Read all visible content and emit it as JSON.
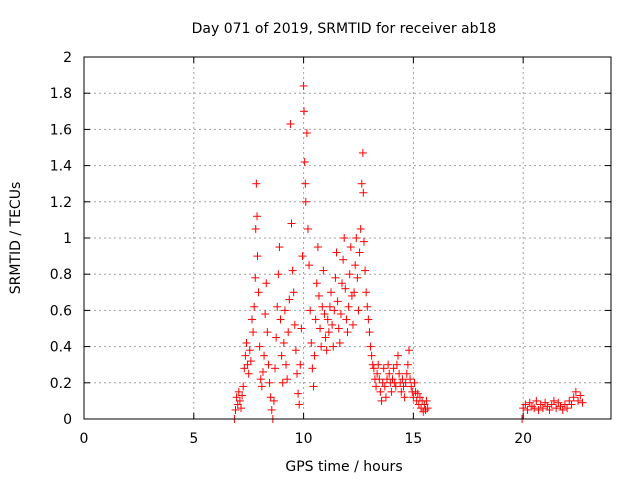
{
  "chart_data": {
    "type": "scatter",
    "title": "Day 071 of 2019, SRMTID for receiver ab18",
    "xlabel": "GPS time / hours",
    "ylabel": "SRMTID / TECUs",
    "xlim": [
      0,
      24
    ],
    "ylim": [
      0,
      2
    ],
    "xticks": [
      0,
      5,
      10,
      15,
      20
    ],
    "xtick_labels": [
      "0",
      "5",
      "10",
      "15",
      "20"
    ],
    "yticks": [
      0,
      0.2,
      0.4,
      0.6,
      0.8,
      1.0,
      1.2,
      1.4,
      1.6,
      1.8,
      2.0
    ],
    "ytick_labels": [
      "0",
      "0.2",
      "0.4",
      "0.6",
      "0.8",
      "1",
      "1.2",
      "1.4",
      "1.6",
      "1.8",
      "2"
    ],
    "grid": true,
    "marker": "+",
    "marker_color": "#ff0000",
    "series": [
      {
        "name": "SRMTID",
        "points": [
          [
            6.85,
            0.0
          ],
          [
            6.9,
            0.05
          ],
          [
            6.95,
            0.12
          ],
          [
            7.0,
            0.08
          ],
          [
            7.05,
            0.15
          ],
          [
            7.1,
            0.1
          ],
          [
            7.15,
            0.06
          ],
          [
            7.2,
            0.13
          ],
          [
            7.25,
            0.18
          ],
          [
            7.3,
            0.28
          ],
          [
            7.35,
            0.35
          ],
          [
            7.4,
            0.42
          ],
          [
            7.45,
            0.3
          ],
          [
            7.5,
            0.25
          ],
          [
            7.55,
            0.38
          ],
          [
            7.6,
            0.32
          ],
          [
            7.65,
            0.55
          ],
          [
            7.7,
            0.48
          ],
          [
            7.75,
            0.62
          ],
          [
            7.8,
            0.78
          ],
          [
            7.82,
            1.05
          ],
          [
            7.85,
            1.3
          ],
          [
            7.88,
            1.12
          ],
          [
            7.9,
            0.9
          ],
          [
            7.95,
            0.7
          ],
          [
            8.0,
            0.4
          ],
          [
            8.05,
            0.22
          ],
          [
            8.1,
            0.18
          ],
          [
            8.15,
            0.26
          ],
          [
            8.2,
            0.35
          ],
          [
            8.25,
            0.58
          ],
          [
            8.3,
            0.75
          ],
          [
            8.35,
            0.48
          ],
          [
            8.4,
            0.3
          ],
          [
            8.45,
            0.2
          ],
          [
            8.5,
            0.12
          ],
          [
            8.55,
            0.05
          ],
          [
            8.6,
            0.0
          ],
          [
            8.65,
            0.1
          ],
          [
            8.7,
            0.28
          ],
          [
            8.75,
            0.45
          ],
          [
            8.8,
            0.62
          ],
          [
            8.85,
            0.8
          ],
          [
            8.9,
            0.95
          ],
          [
            8.95,
            0.55
          ],
          [
            9.0,
            0.35
          ],
          [
            9.05,
            0.2
          ],
          [
            9.1,
            0.42
          ],
          [
            9.15,
            0.6
          ],
          [
            9.2,
            0.3
          ],
          [
            9.25,
            0.22
          ],
          [
            9.3,
            0.48
          ],
          [
            9.35,
            0.66
          ],
          [
            9.4,
            1.63
          ],
          [
            9.45,
            1.08
          ],
          [
            9.5,
            0.82
          ],
          [
            9.55,
            0.7
          ],
          [
            9.6,
            0.52
          ],
          [
            9.65,
            0.38
          ],
          [
            9.7,
            0.25
          ],
          [
            9.75,
            0.14
          ],
          [
            9.8,
            0.08
          ],
          [
            9.85,
            0.3
          ],
          [
            9.9,
            0.5
          ],
          [
            9.95,
            0.9
          ],
          [
            10.0,
            1.84
          ],
          [
            10.02,
            1.7
          ],
          [
            10.05,
            1.42
          ],
          [
            10.08,
            1.3
          ],
          [
            10.1,
            1.2
          ],
          [
            10.15,
            1.58
          ],
          [
            10.2,
            1.05
          ],
          [
            10.25,
            0.85
          ],
          [
            10.3,
            0.6
          ],
          [
            10.35,
            0.42
          ],
          [
            10.4,
            0.28
          ],
          [
            10.45,
            0.18
          ],
          [
            10.5,
            0.35
          ],
          [
            10.55,
            0.55
          ],
          [
            10.6,
            0.75
          ],
          [
            10.65,
            0.95
          ],
          [
            10.7,
            0.68
          ],
          [
            10.75,
            0.5
          ],
          [
            10.8,
            0.4
          ],
          [
            10.85,
            0.62
          ],
          [
            10.9,
            0.82
          ],
          [
            10.95,
            0.58
          ],
          [
            11.0,
            0.45
          ],
          [
            11.05,
            0.38
          ],
          [
            11.1,
            0.55
          ],
          [
            11.15,
            0.48
          ],
          [
            11.2,
            0.62
          ],
          [
            11.25,
            0.7
          ],
          [
            11.3,
            0.52
          ],
          [
            11.35,
            0.4
          ],
          [
            11.4,
            0.6
          ],
          [
            11.45,
            0.78
          ],
          [
            11.5,
            0.92
          ],
          [
            11.55,
            0.65
          ],
          [
            11.6,
            0.5
          ],
          [
            11.65,
            0.42
          ],
          [
            11.7,
            0.58
          ],
          [
            11.75,
            0.75
          ],
          [
            11.8,
            0.88
          ],
          [
            11.85,
            1.0
          ],
          [
            11.9,
            0.72
          ],
          [
            11.95,
            0.55
          ],
          [
            12.0,
            0.48
          ],
          [
            12.05,
            0.62
          ],
          [
            12.1,
            0.8
          ],
          [
            12.15,
            0.95
          ],
          [
            12.2,
            0.68
          ],
          [
            12.25,
            0.52
          ],
          [
            12.3,
            0.7
          ],
          [
            12.35,
            0.85
          ],
          [
            12.4,
            1.0
          ],
          [
            12.45,
            0.78
          ],
          [
            12.5,
            0.6
          ],
          [
            12.55,
            0.92
          ],
          [
            12.6,
            1.05
          ],
          [
            12.65,
            1.3
          ],
          [
            12.7,
            1.47
          ],
          [
            12.72,
            1.25
          ],
          [
            12.75,
            0.98
          ],
          [
            12.8,
            0.82
          ],
          [
            12.85,
            0.7
          ],
          [
            12.9,
            0.62
          ],
          [
            12.95,
            0.55
          ],
          [
            13.0,
            0.48
          ],
          [
            13.05,
            0.4
          ],
          [
            13.1,
            0.35
          ],
          [
            13.15,
            0.3
          ],
          [
            13.2,
            0.28
          ],
          [
            13.25,
            0.22
          ],
          [
            13.3,
            0.18
          ],
          [
            13.35,
            0.25
          ],
          [
            13.4,
            0.3
          ],
          [
            13.45,
            0.22
          ],
          [
            13.5,
            0.15
          ],
          [
            13.55,
            0.1
          ],
          [
            13.6,
            0.2
          ],
          [
            13.65,
            0.28
          ],
          [
            13.7,
            0.18
          ],
          [
            13.75,
            0.12
          ],
          [
            13.8,
            0.22
          ],
          [
            13.85,
            0.3
          ],
          [
            13.9,
            0.25
          ],
          [
            13.95,
            0.2
          ],
          [
            14.0,
            0.15
          ],
          [
            14.05,
            0.22
          ],
          [
            14.1,
            0.28
          ],
          [
            14.15,
            0.2
          ],
          [
            14.2,
            0.18
          ],
          [
            14.25,
            0.3
          ],
          [
            14.3,
            0.35
          ],
          [
            14.35,
            0.25
          ],
          [
            14.4,
            0.2
          ],
          [
            14.45,
            0.15
          ],
          [
            14.5,
            0.22
          ],
          [
            14.55,
            0.18
          ],
          [
            14.6,
            0.12
          ],
          [
            14.65,
            0.2
          ],
          [
            14.7,
            0.25
          ],
          [
            14.75,
            0.3
          ],
          [
            14.8,
            0.38
          ],
          [
            14.85,
            0.22
          ],
          [
            14.9,
            0.18
          ],
          [
            14.95,
            0.15
          ],
          [
            15.0,
            0.12
          ],
          [
            15.05,
            0.2
          ],
          [
            15.1,
            0.15
          ],
          [
            15.15,
            0.1
          ],
          [
            15.2,
            0.14
          ],
          [
            15.25,
            0.08
          ],
          [
            15.3,
            0.12
          ],
          [
            15.35,
            0.06
          ],
          [
            15.4,
            0.1
          ],
          [
            15.45,
            0.04
          ],
          [
            15.5,
            0.08
          ],
          [
            15.55,
            0.05
          ],
          [
            15.6,
            0.1
          ],
          [
            15.65,
            0.06
          ],
          [
            19.95,
            0.0
          ],
          [
            20.0,
            0.06
          ],
          [
            20.1,
            0.08
          ],
          [
            20.2,
            0.05
          ],
          [
            20.3,
            0.09
          ],
          [
            20.4,
            0.07
          ],
          [
            20.5,
            0.06
          ],
          [
            20.6,
            0.1
          ],
          [
            20.7,
            0.05
          ],
          [
            20.8,
            0.08
          ],
          [
            20.9,
            0.06
          ],
          [
            21.0,
            0.09
          ],
          [
            21.1,
            0.07
          ],
          [
            21.2,
            0.05
          ],
          [
            21.3,
            0.08
          ],
          [
            21.4,
            0.1
          ],
          [
            21.5,
            0.06
          ],
          [
            21.6,
            0.09
          ],
          [
            21.7,
            0.07
          ],
          [
            21.8,
            0.05
          ],
          [
            21.9,
            0.08
          ],
          [
            22.0,
            0.06
          ],
          [
            22.1,
            0.1
          ],
          [
            22.2,
            0.08
          ],
          [
            22.3,
            0.12
          ],
          [
            22.4,
            0.15
          ],
          [
            22.5,
            0.1
          ],
          [
            22.6,
            0.13
          ],
          [
            22.7,
            0.09
          ]
        ]
      }
    ]
  }
}
